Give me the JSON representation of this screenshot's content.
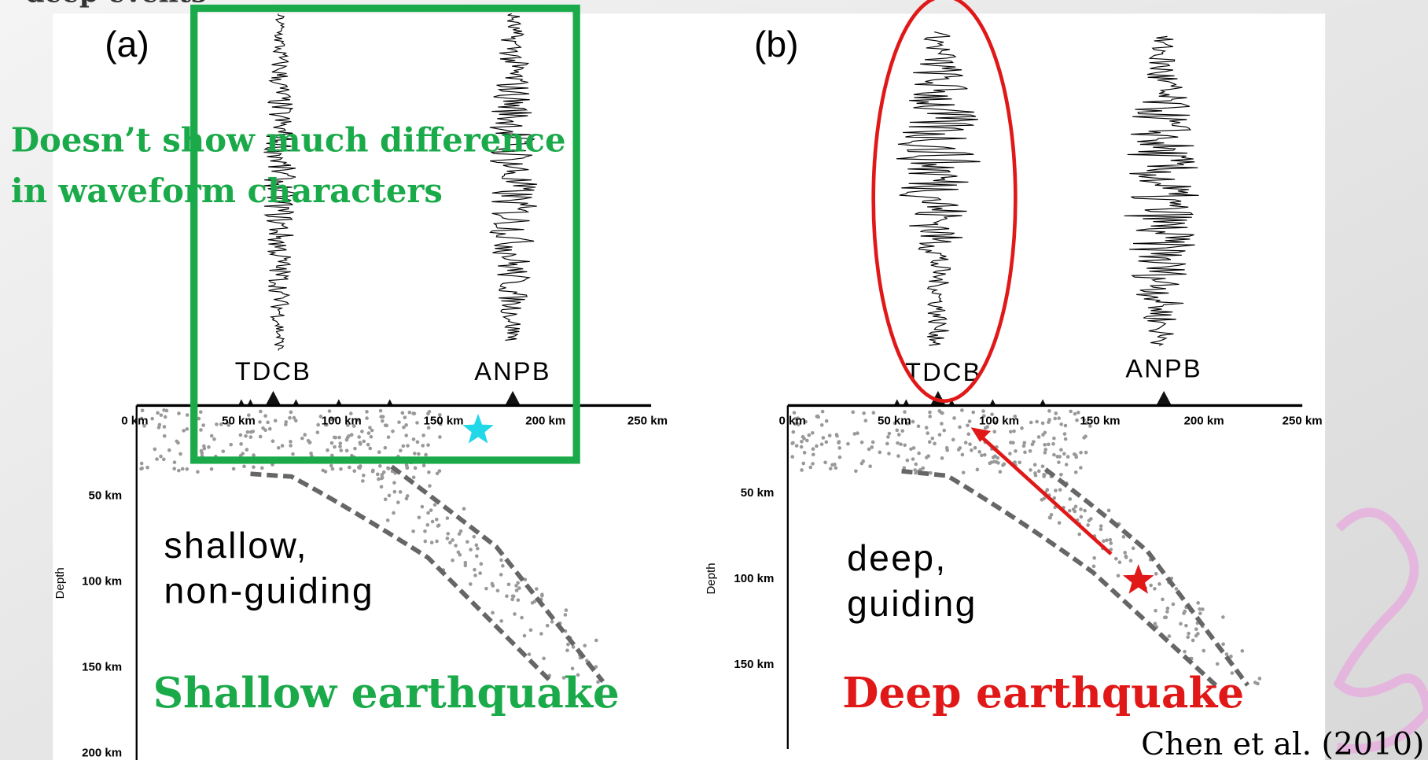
{
  "slide": {
    "top_text": "deep events",
    "citation": "Chen et al. (2010)"
  },
  "panels": [
    {
      "label": "(a)",
      "stations": [
        "TDCB",
        "ANPB"
      ],
      "x_ticks": [
        "0 km",
        "50 km",
        "100 km",
        "150 km",
        "200 km",
        "250 km"
      ],
      "y_ticks": [
        "50 km",
        "100 km",
        "150 km",
        "200 km"
      ],
      "y_axis_label": "Depth",
      "description": [
        "shallow,",
        "non-guiding"
      ],
      "caption": "Shallow earthquake",
      "note": [
        "Doesn’t show much difference",
        "in waveform characters"
      ]
    },
    {
      "label": "(b)",
      "stations": [
        "TDCB",
        "ANPB"
      ],
      "x_ticks": [
        "0 km",
        "50 km",
        "100 km",
        "150 km",
        "200 km",
        "250 km"
      ],
      "y_ticks": [
        "50 km",
        "100 km",
        "150 km"
      ],
      "y_axis_label": "Depth",
      "description": [
        "deep,",
        "guiding"
      ],
      "caption": "Deep earthquake"
    }
  ]
}
